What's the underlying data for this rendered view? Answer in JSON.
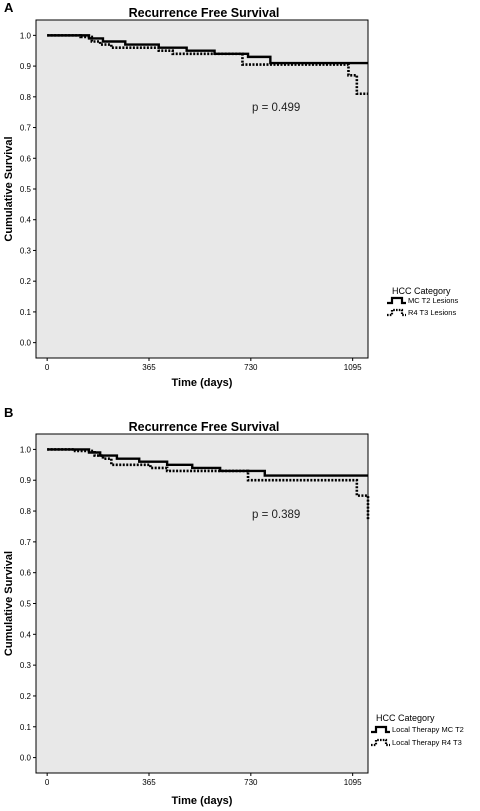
{
  "chart_data": [
    {
      "type": "line",
      "panel_label": "A",
      "title": "Recurrence Free Survival",
      "xlabel": "Time (days)",
      "ylabel": "Cumulative Survival",
      "xlim": [
        -40,
        1150
      ],
      "ylim": [
        -0.05,
        1.05
      ],
      "x_ticks": [
        "0",
        "365",
        "730",
        "1095"
      ],
      "y_ticks": [
        "0.0",
        "0.1",
        "0.2",
        "0.3",
        "0.4",
        "0.5",
        "0.6",
        "0.7",
        "0.8",
        "0.9",
        "1.0"
      ],
      "grid": false,
      "background": "#e8e8e8",
      "annotation": "p = 0.499",
      "legend": {
        "title": "HCC Category",
        "position": "right",
        "entries": [
          "MC T2 Lesions",
          "R4 T3 Lesions"
        ]
      },
      "series": [
        {
          "name": "MC T2 Lesions",
          "style": "solid",
          "color": "#000000",
          "x": [
            0,
            150,
            200,
            280,
            400,
            500,
            600,
            720,
            800,
            1150
          ],
          "y": [
            1.0,
            0.99,
            0.98,
            0.97,
            0.96,
            0.95,
            0.94,
            0.93,
            0.91,
            0.91
          ]
        },
        {
          "name": "R4 T3 Lesions",
          "style": "dotted",
          "color": "#000000",
          "x": [
            0,
            120,
            160,
            190,
            230,
            400,
            450,
            650,
            700,
            1000,
            1080,
            1110,
            1150
          ],
          "y": [
            1.0,
            0.995,
            0.98,
            0.97,
            0.96,
            0.95,
            0.94,
            0.94,
            0.905,
            0.905,
            0.87,
            0.81,
            0.81
          ]
        }
      ]
    },
    {
      "type": "line",
      "panel_label": "B",
      "title": "Recurrence Free Survival",
      "xlabel": "Time (days)",
      "ylabel": "Cumulative Survival",
      "xlim": [
        -40,
        1150
      ],
      "ylim": [
        -0.05,
        1.05
      ],
      "x_ticks": [
        "0",
        "365",
        "730",
        "1095"
      ],
      "y_ticks": [
        "0.0",
        "0.1",
        "0.2",
        "0.3",
        "0.4",
        "0.5",
        "0.6",
        "0.7",
        "0.8",
        "0.9",
        "1.0"
      ],
      "grid": false,
      "background": "#e8e8e8",
      "annotation": "p = 0.389",
      "legend": {
        "title": "HCC Category",
        "position": "right",
        "entries": [
          "Local Therapy MC T2",
          "Local Therapy R4 T3"
        ]
      },
      "series": [
        {
          "name": "Local Therapy MC T2",
          "style": "solid",
          "color": "#000000",
          "x": [
            0,
            150,
            190,
            250,
            330,
            430,
            520,
            620,
            780,
            1150
          ],
          "y": [
            1.0,
            0.99,
            0.98,
            0.97,
            0.96,
            0.95,
            0.94,
            0.93,
            0.915,
            0.915
          ]
        },
        {
          "name": "Local Therapy R4 T3",
          "style": "dotted",
          "color": "#000000",
          "x": [
            0,
            100,
            170,
            200,
            230,
            370,
            430,
            650,
            720,
            1050,
            1110,
            1150
          ],
          "y": [
            1.0,
            0.995,
            0.98,
            0.97,
            0.95,
            0.94,
            0.93,
            0.93,
            0.9,
            0.9,
            0.85,
            0.77
          ]
        }
      ]
    }
  ]
}
